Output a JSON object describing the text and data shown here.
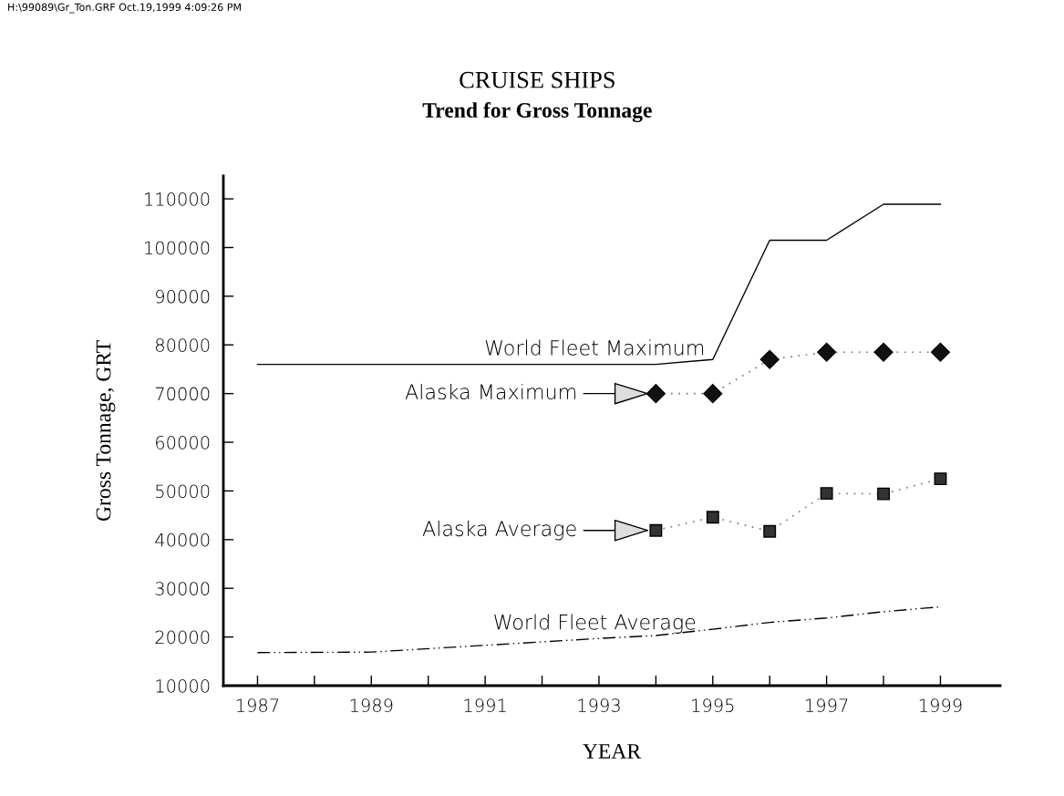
{
  "chart_data": {
    "type": "line",
    "title": "CRUISE SHIPS",
    "subtitle": "Trend for Gross Tonnage",
    "xlabel": "YEAR",
    "ylabel": "Gross Tonnage, GRT",
    "annotations": [
      "H:\\99089\\Gr_Ton.GRF Oct.19,1999 4:09:26 PM",
      "Alaska Maximum",
      "Alaska Average"
    ],
    "x": [
      1987,
      1988,
      1989,
      1990,
      1991,
      1992,
      1993,
      1994,
      1995,
      1996,
      1997,
      1998,
      1999
    ],
    "series": [
      {
        "name": "World Fleet Maximum",
        "color": "#000000",
        "marker": "none",
        "line_style": "solid",
        "values": [
          76000,
          76000,
          76000,
          76000,
          76000,
          76000,
          76000,
          76000,
          77000,
          101500,
          101500,
          108900,
          108900
        ]
      },
      {
        "color": "#111111",
        "marker": "diamond",
        "line_style": "dotted",
        "x": [
          1994,
          1995,
          1996,
          1997,
          1998,
          1999
        ],
        "values": [
          70000,
          70000,
          77000,
          78500,
          78500,
          78500
        ]
      },
      {
        "color": "#333333",
        "marker": "square",
        "line_style": "dotted",
        "x": [
          1994,
          1995,
          1996,
          1997,
          1998,
          1999
        ],
        "values": [
          41900,
          44600,
          41700,
          49500,
          49400,
          52500
        ]
      },
      {
        "name": "World Fleet Average",
        "color": "#000000",
        "marker": "none",
        "line_style": "dashdot",
        "x": [
          1987,
          1989,
          1991,
          1993,
          1994,
          1995,
          1996,
          1997,
          1998,
          1999
        ],
        "values": [
          16800,
          16900,
          18300,
          19700,
          20300,
          21600,
          23000,
          23900,
          25200,
          26200
        ]
      }
    ],
    "xlim": [
      1986.4,
      2000.05
    ],
    "ylim": [
      10000,
      114700
    ],
    "xticks": [
      1987,
      {
        "value": 1988,
        "label": null
      },
      1989,
      {
        "value": 1990,
        "label": null
      },
      1991,
      {
        "value": 1992,
        "label": null
      },
      1993,
      {
        "value": 1994,
        "label": null
      },
      1995,
      {
        "value": 1996,
        "label": null
      },
      1997,
      {
        "value": 1998,
        "label": null
      },
      1999
    ],
    "yticks": [
      10000,
      20000,
      30000,
      40000,
      50000,
      60000,
      70000,
      80000,
      90000,
      100000,
      110000
    ],
    "grid": false,
    "legend": false
  }
}
